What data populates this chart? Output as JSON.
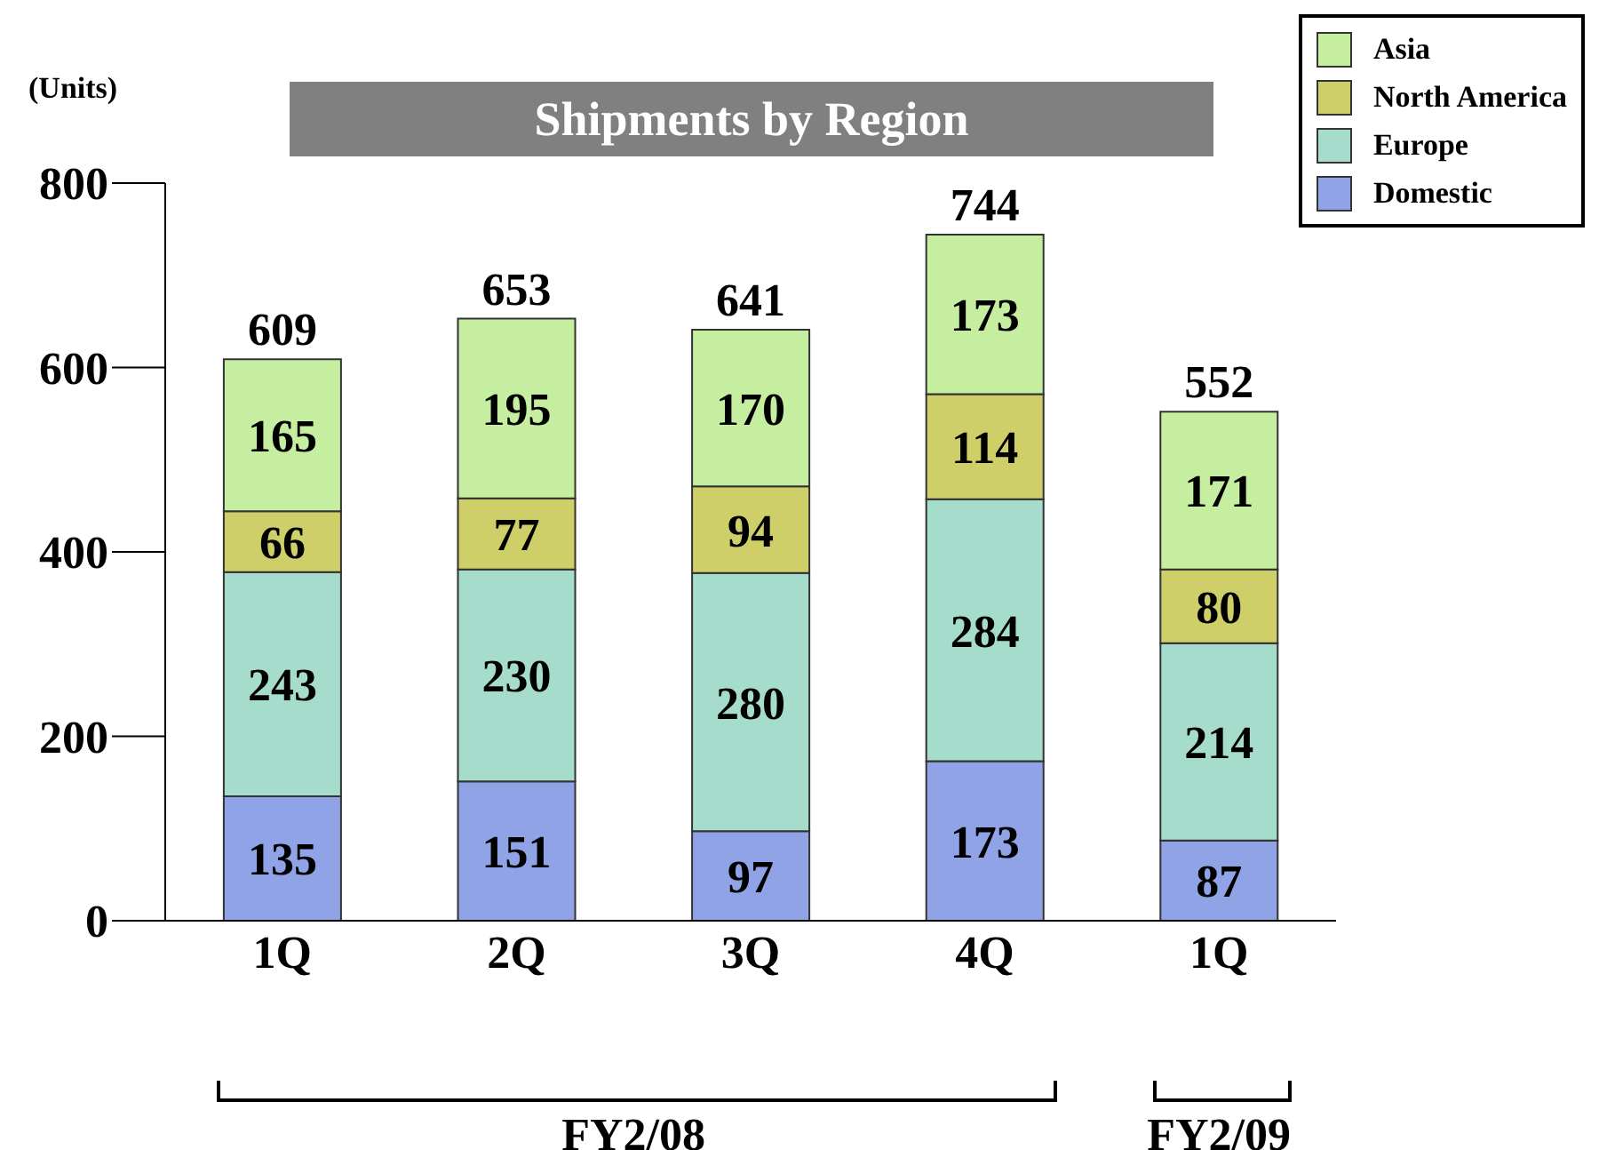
{
  "chart_data": {
    "type": "bar",
    "title": "Shipments by Region",
    "ylabel": "(Units)",
    "categories": [
      "1Q",
      "2Q",
      "3Q",
      "4Q",
      "1Q"
    ],
    "stacked": true,
    "series": [
      {
        "name": "Domestic",
        "color": "#8fa3e6",
        "values": [
          135,
          151,
          97,
          173,
          87
        ]
      },
      {
        "name": "Europe",
        "color": "#a6dccb",
        "values": [
          243,
          230,
          280,
          284,
          214
        ]
      },
      {
        "name": "North America",
        "color": "#cfcf6a",
        "values": [
          66,
          77,
          94,
          114,
          80
        ]
      },
      {
        "name": "Asia",
        "color": "#c6eea0",
        "values": [
          165,
          195,
          170,
          173,
          171
        ]
      }
    ],
    "totals": [
      "609",
      "653",
      "641",
      "744",
      "552"
    ],
    "data_labels": true,
    "ylim": [
      0,
      800
    ],
    "yticks": [
      0,
      200,
      400,
      600,
      800
    ],
    "grid": false,
    "legend": "top right",
    "annotations": [
      "FY2/08",
      "FY2/09"
    ]
  }
}
